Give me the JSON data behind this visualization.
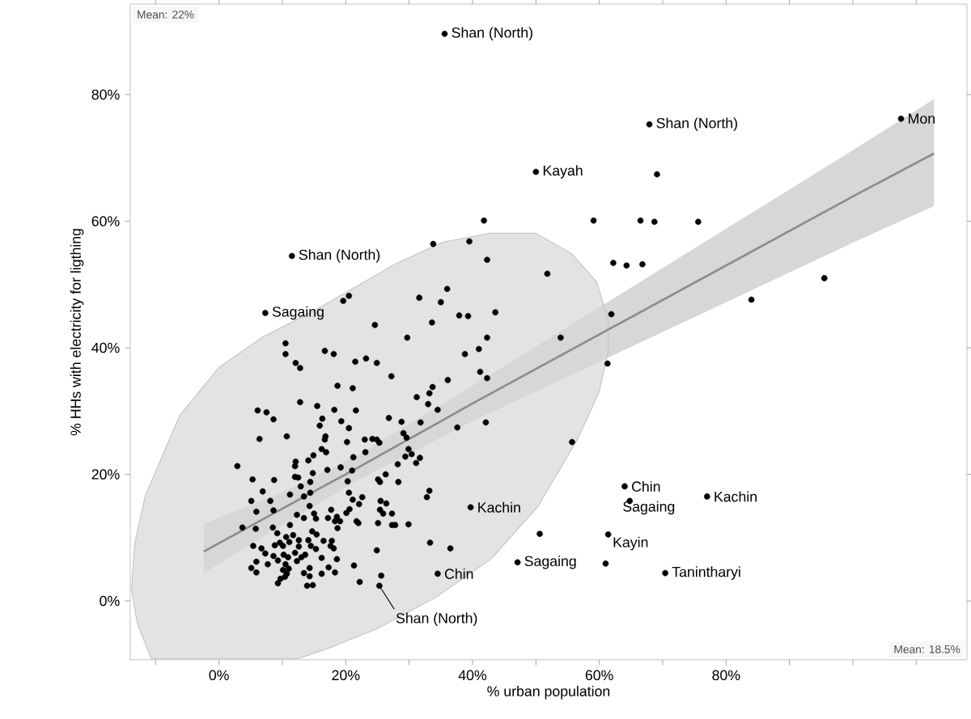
{
  "chart_data": {
    "type": "scatter",
    "xlabel": "% urban population",
    "ylabel": "% HHs with electricity for ligthing",
    "xlim": [
      -14,
      118
    ],
    "ylim": [
      -9.3,
      94.3
    ],
    "xticks": [
      {
        "value": -10,
        "label": null
      },
      {
        "value": 0,
        "label": "0%"
      },
      {
        "value": 10,
        "label": null
      },
      {
        "value": 20,
        "label": "20%"
      },
      {
        "value": 30,
        "label": null
      },
      {
        "value": 40,
        "label": "40%"
      },
      {
        "value": 50,
        "label": null
      },
      {
        "value": 60,
        "label": "60%"
      },
      {
        "value": 70,
        "label": null
      },
      {
        "value": 80,
        "label": "80%"
      },
      {
        "value": 90,
        "label": null
      },
      {
        "value": 100,
        "label": null
      },
      {
        "value": 110,
        "label": null
      }
    ],
    "yticks": [
      {
        "value": 0,
        "label": "0%"
      },
      {
        "value": 20,
        "label": "20%"
      },
      {
        "value": 40,
        "label": "40%"
      },
      {
        "value": 60,
        "label": "60%"
      },
      {
        "value": 80,
        "label": "80%"
      }
    ],
    "series": [
      {
        "type": "area",
        "color": "#e3e3e3",
        "x": [
          42.9,
          50.0,
          55.6,
          59.6,
          61.4,
          61.4,
          60.0,
          56.7,
          50.3,
          42.9,
          34.1,
          24.9,
          17.7,
          12.6,
          -10.7,
          -12.9,
          -13.8,
          -13.3,
          -11.6,
          -6.2,
          0.0,
          6.9,
          15.3,
          27.9,
          35.4
        ],
        "values": [
          58.1,
          58.1,
          54.9,
          50.4,
          44.4,
          39.3,
          33.1,
          25.8,
          14.9,
          6.6,
          0.5,
          -4.4,
          -7.3,
          -9.1,
          -9.1,
          -3.5,
          1.9,
          9.1,
          16.7,
          29.3,
          36.9,
          41.7,
          46.0,
          53.3,
          56.7
        ]
      },
      {
        "type": "line",
        "color": "#8c8c8c",
        "x": [
          -2.4,
          10,
          22,
          40,
          60,
          80,
          100,
          112.8
        ],
        "values": [
          7.8,
          14.6,
          21.1,
          31.2,
          42.1,
          53.0,
          63.9,
          70.7
        ],
        "lower": [
          4.4,
          12.0,
          19.1,
          28.4,
          37.8,
          47.2,
          56.6,
          62.4
        ],
        "upper": [
          12.2,
          17.2,
          23.1,
          34.0,
          46.4,
          58.8,
          71.2,
          79.3
        ]
      },
      {
        "color": "#000000",
        "marker": "circle",
        "x": [
          35.6,
          67.9,
          107.6,
          50.0,
          11.5,
          7.3,
          64.0,
          64.8,
          77.0,
          39.7,
          61.4,
          47.1,
          70.4,
          34.5,
          25.3,
          41.8,
          59.1,
          66.5,
          68.7,
          75.6,
          69.1,
          39.5,
          42.3,
          51.8,
          62.2,
          64.3,
          66.8,
          95.5,
          84.0,
          61.9,
          43.6,
          39.3,
          37.9,
          42.3,
          53.9,
          38.8,
          41.0,
          41.2,
          42.3,
          36.1,
          61.3,
          34.5,
          37.6,
          42.1,
          55.7,
          50.6,
          36.5,
          61.0,
          29.7,
          10.5,
          10.5,
          16.7,
          18.1,
          12.1,
          12.8,
          21.5,
          23.2,
          24.9,
          27.2,
          18.7,
          21.1,
          33.7,
          33.2,
          31.2,
          33.0,
          12.8,
          15.5,
          18.2,
          21.6,
          16.3,
          15.9,
          19.3,
          20.5,
          26.8,
          28.8,
          31.8,
          10.7,
          16.8,
          16.7,
          20.2,
          23.0,
          24.2,
          24.9,
          25.3,
          29.1,
          29.6,
          16.2,
          16.9,
          23.1,
          29.9,
          30.4,
          29.4,
          31.7,
          31.1,
          14.9,
          14.1,
          12.1,
          12.0,
          21.2,
          28.2,
          17.1,
          19.2,
          14.8,
          21.0,
          26.3,
          25.1,
          25.4,
          28.3,
          12.0,
          12.5,
          20.3,
          14.4,
          12.9,
          11.2,
          13.4,
          14.4,
          20.5,
          21.1,
          22.6,
          33.2,
          32.8,
          14.3,
          22.1,
          25.5,
          26.4,
          25.4,
          25.9,
          27.3,
          17.7,
          20.6,
          20.1,
          15.0,
          15.3,
          12.3,
          13.4,
          17.2,
          18.6,
          18.3,
          19.1,
          21.7,
          22.0,
          18.7,
          25.1,
          27.3,
          27.8,
          29.9,
          11.2,
          14.7,
          15.4,
          11.7,
          12.6,
          14.1,
          11.1,
          16.5,
          17.8,
          17.6,
          18.1,
          14.5,
          15.3,
          12.6,
          33.3,
          12.0,
          13.6,
          13.0,
          10.9,
          12.3,
          16.2,
          18.6,
          24.9,
          10.5,
          11.0,
          14.3,
          13.4,
          17.3,
          18.3,
          16.2,
          14.3,
          21.3,
          25.6,
          22.2,
          10.4,
          13.9,
          14.8,
          6.1,
          7.5,
          8.6,
          6.4,
          2.9,
          5.3,
          8.7,
          6.9,
          5.1,
          8.1,
          5.9,
          8.6,
          3.7,
          5.8,
          8.5,
          9.2,
          10.6,
          5.4,
          6.7,
          8.8,
          9.6,
          10.1,
          7.3,
          8.6,
          10.2,
          5.9,
          7.7,
          9.3,
          5.1,
          5.9,
          10.1,
          9.7,
          9.3,
          10.7,
          33.8,
          36.0,
          31.6,
          35.0,
          24.6,
          33.6,
          20.5,
          19.6
        ],
        "values": [
          89.6,
          75.3,
          76.2,
          67.8,
          54.5,
          45.5,
          18.1,
          15.8,
          16.5,
          14.8,
          10.5,
          6.1,
          4.4,
          4.3,
          2.4,
          60.1,
          60.1,
          60.1,
          59.9,
          59.9,
          67.4,
          56.8,
          53.9,
          51.7,
          53.4,
          53.0,
          53.2,
          51.0,
          47.6,
          45.3,
          45.6,
          45.0,
          45.1,
          41.6,
          41.6,
          39.0,
          39.8,
          36.2,
          35.2,
          34.9,
          37.5,
          30.2,
          27.4,
          28.2,
          25.1,
          10.6,
          8.3,
          5.9,
          41.6,
          40.7,
          39.0,
          39.5,
          39.0,
          37.6,
          36.8,
          37.8,
          38.3,
          37.6,
          35.5,
          34.0,
          33.6,
          33.8,
          32.8,
          32.2,
          31.1,
          31.4,
          30.8,
          30.2,
          30.1,
          28.8,
          27.7,
          28.4,
          27.3,
          28.9,
          28.3,
          28.2,
          26.0,
          26.0,
          25.5,
          25.1,
          25.5,
          25.6,
          25.5,
          25.0,
          26.5,
          25.8,
          24.0,
          23.5,
          23.5,
          24.0,
          23.2,
          22.8,
          22.6,
          21.8,
          23.0,
          22.2,
          22.0,
          21.3,
          22.7,
          21.6,
          20.7,
          21.1,
          20.2,
          20.6,
          20.0,
          19.2,
          18.8,
          18.8,
          19.6,
          19.5,
          18.9,
          18.8,
          18.1,
          16.8,
          16.5,
          17.1,
          17.1,
          16.0,
          16.4,
          17.4,
          16.4,
          15.0,
          15.3,
          15.8,
          15.4,
          14.4,
          13.8,
          13.8,
          14.4,
          14.5,
          13.9,
          13.8,
          13.0,
          13.6,
          13.1,
          13.1,
          13.3,
          12.6,
          12.6,
          12.6,
          12.3,
          11.5,
          12.3,
          12.0,
          12.0,
          12.1,
          12.0,
          11.0,
          10.5,
          10.4,
          9.6,
          9.6,
          9.3,
          9.5,
          9.5,
          8.7,
          8.3,
          8.7,
          8.2,
          8.6,
          9.2,
          7.6,
          7.3,
          6.9,
          6.9,
          6.3,
          6.8,
          6.6,
          8.0,
          5.8,
          5.1,
          5.2,
          4.4,
          5.3,
          4.5,
          4.3,
          3.9,
          5.6,
          4.0,
          3.0,
          3.8,
          2.4,
          2.5,
          30.1,
          29.8,
          28.7,
          25.6,
          21.3,
          19.2,
          19.1,
          17.3,
          15.8,
          15.8,
          14.1,
          14.3,
          11.6,
          11.4,
          11.6,
          10.7,
          10.1,
          8.7,
          8.3,
          8.8,
          9.2,
          8.7,
          7.5,
          7.1,
          7.3,
          6.2,
          5.8,
          6.4,
          5.2,
          4.5,
          4.9,
          3.5,
          2.8,
          4.3,
          56.4,
          49.3,
          47.9,
          47.2,
          43.6,
          44.0,
          48.2,
          47.4
        ]
      }
    ],
    "annotations": [
      "Mean: 22%",
      {
        "text": "Shan (North)",
        "x": 35.6,
        "y": 89.6
      },
      {
        "text": "Shan (North)",
        "x": 67.9,
        "y": 75.3
      },
      {
        "text": "Mon",
        "x": 107.6,
        "y": 76.2
      },
      {
        "text": "Kayah",
        "x": 50.0,
        "y": 67.8
      },
      {
        "text": "Shan (North)",
        "x": 11.5,
        "y": 54.5
      },
      {
        "text": "Sagaing",
        "x": 7.3,
        "y": 45.5
      },
      {
        "text": "Chin",
        "x": 64.0,
        "y": 18.1
      },
      {
        "text": "Sagaing",
        "x": 64.8,
        "y": 15.8
      },
      {
        "text": "Kachin",
        "x": 77.0,
        "y": 16.5
      },
      {
        "text": "Kachin",
        "x": 39.7,
        "y": 14.8
      },
      {
        "text": "Kayin",
        "x": 61.4,
        "y": 10.5
      },
      {
        "text": "Sagaing",
        "x": 47.1,
        "y": 6.1
      },
      {
        "text": "Tanintharyi",
        "x": 70.4,
        "y": 4.4
      },
      {
        "text": "Chin",
        "x": 34.5,
        "y": 4.3
      },
      {
        "text": "Shan (North)",
        "x": 25.3,
        "y": 2.4
      },
      "Mean: 18.5%"
    ]
  }
}
